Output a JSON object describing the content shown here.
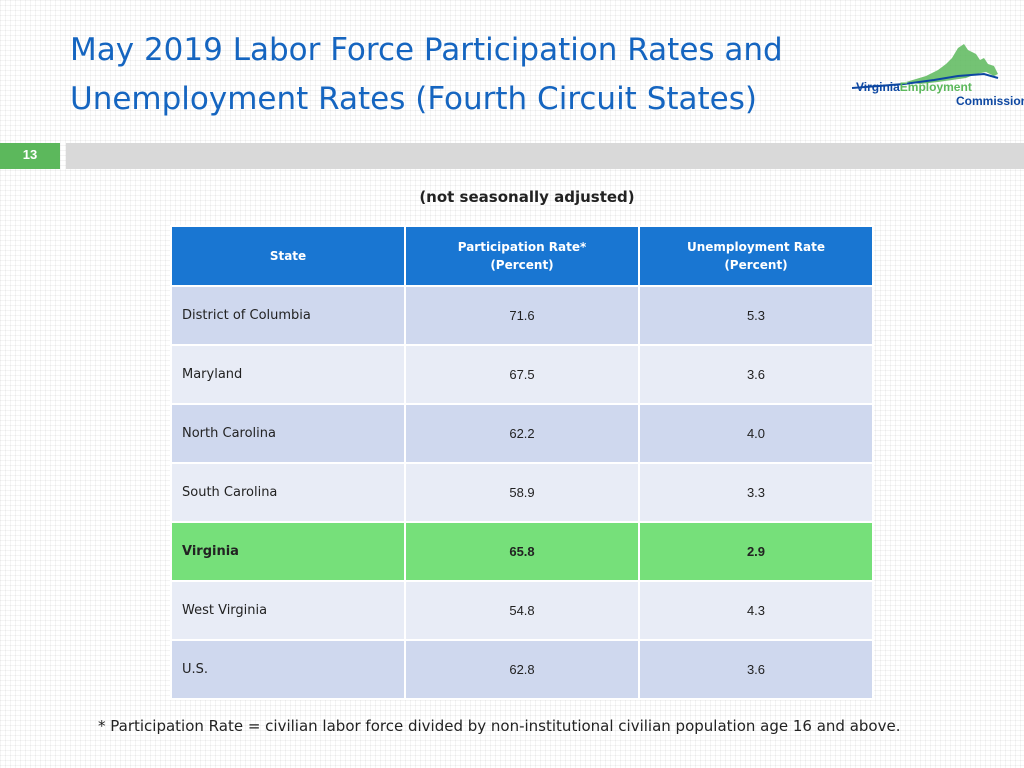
{
  "title": "May 2019 Labor Force Participation Rates and Unemployment Rates (Fourth Circuit States)",
  "logo": {
    "word_virginia": "Virginia",
    "word_employment": "Employment",
    "word_commission": "Commission",
    "colors": {
      "blue": "#0d47a1",
      "green": "#5cb85c"
    }
  },
  "slide_number": "13",
  "subtitle": "(not seasonally adjusted)",
  "table": {
    "headers": {
      "state": "State",
      "participation": [
        "Participation Rate*",
        "(Percent)"
      ],
      "unemployment": [
        "Unemployment Rate",
        "(Percent)"
      ]
    },
    "rows": [
      {
        "state": "District of Columbia",
        "participation": "71.6",
        "unemployment": "5.3",
        "highlight": false
      },
      {
        "state": "Maryland",
        "participation": "67.5",
        "unemployment": "3.6",
        "highlight": false
      },
      {
        "state": "North Carolina",
        "participation": "62.2",
        "unemployment": "4.0",
        "highlight": false
      },
      {
        "state": "South Carolina",
        "participation": "58.9",
        "unemployment": "3.3",
        "highlight": false
      },
      {
        "state": "Virginia",
        "participation": "65.8",
        "unemployment": "2.9",
        "highlight": true
      },
      {
        "state": "West Virginia",
        "participation": "54.8",
        "unemployment": "4.3",
        "highlight": false
      },
      {
        "state": "U.S.",
        "participation": "62.8",
        "unemployment": "3.6",
        "highlight": false
      }
    ]
  },
  "footnote": "* Participation Rate = civilian labor force divided by non-institutional civilian population age 16 and above.",
  "colors": {
    "title": "#1565c0",
    "header_bg": "#1976d2",
    "row_odd": "#cfd8ee",
    "row_even": "#e8ecf6",
    "highlight": "#76e07a",
    "slide_number_bg": "#5cb85c"
  }
}
